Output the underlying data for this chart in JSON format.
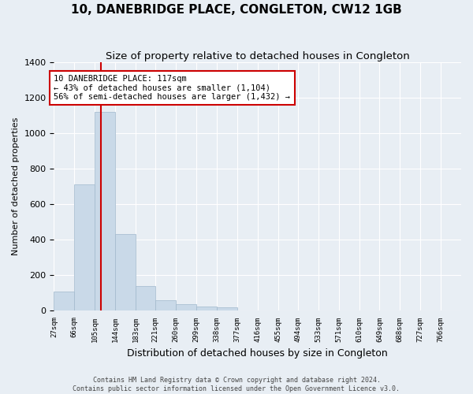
{
  "title": "10, DANEBRIDGE PLACE, CONGLETON, CW12 1GB",
  "subtitle": "Size of property relative to detached houses in Congleton",
  "xlabel": "Distribution of detached houses by size in Congleton",
  "ylabel": "Number of detached properties",
  "footer_line1": "Contains HM Land Registry data © Crown copyright and database right 2024.",
  "footer_line2": "Contains public sector information licensed under the Open Government Licence v3.0.",
  "bar_edges": [
    27,
    66,
    105,
    144,
    183,
    221,
    260,
    299,
    338,
    377,
    416,
    455,
    494,
    533,
    571,
    610,
    649,
    688,
    727,
    766,
    805
  ],
  "bar_heights": [
    105,
    710,
    1120,
    430,
    135,
    55,
    35,
    20,
    15,
    0,
    0,
    0,
    0,
    0,
    0,
    0,
    0,
    0,
    0,
    0
  ],
  "bar_color": "#c9d9e8",
  "bar_edge_color": "#a0b8cc",
  "vline_x": 117,
  "vline_color": "#cc0000",
  "annotation_text": "10 DANEBRIDGE PLACE: 117sqm\n← 43% of detached houses are smaller (1,104)\n56% of semi-detached houses are larger (1,432) →",
  "annotation_box_color": "#ffffff",
  "annotation_border_color": "#cc0000",
  "ylim": [
    0,
    1400
  ],
  "yticks": [
    0,
    200,
    400,
    600,
    800,
    1000,
    1200,
    1400
  ],
  "background_color": "#e8eef4",
  "plot_background": "#e8eef4",
  "grid_color": "#ffffff",
  "title_fontsize": 11,
  "subtitle_fontsize": 9.5,
  "ylabel_fontsize": 8,
  "xlabel_fontsize": 9,
  "ytick_fontsize": 8,
  "xtick_fontsize": 6.5,
  "footer_fontsize": 6,
  "annotation_fontsize": 7.5
}
